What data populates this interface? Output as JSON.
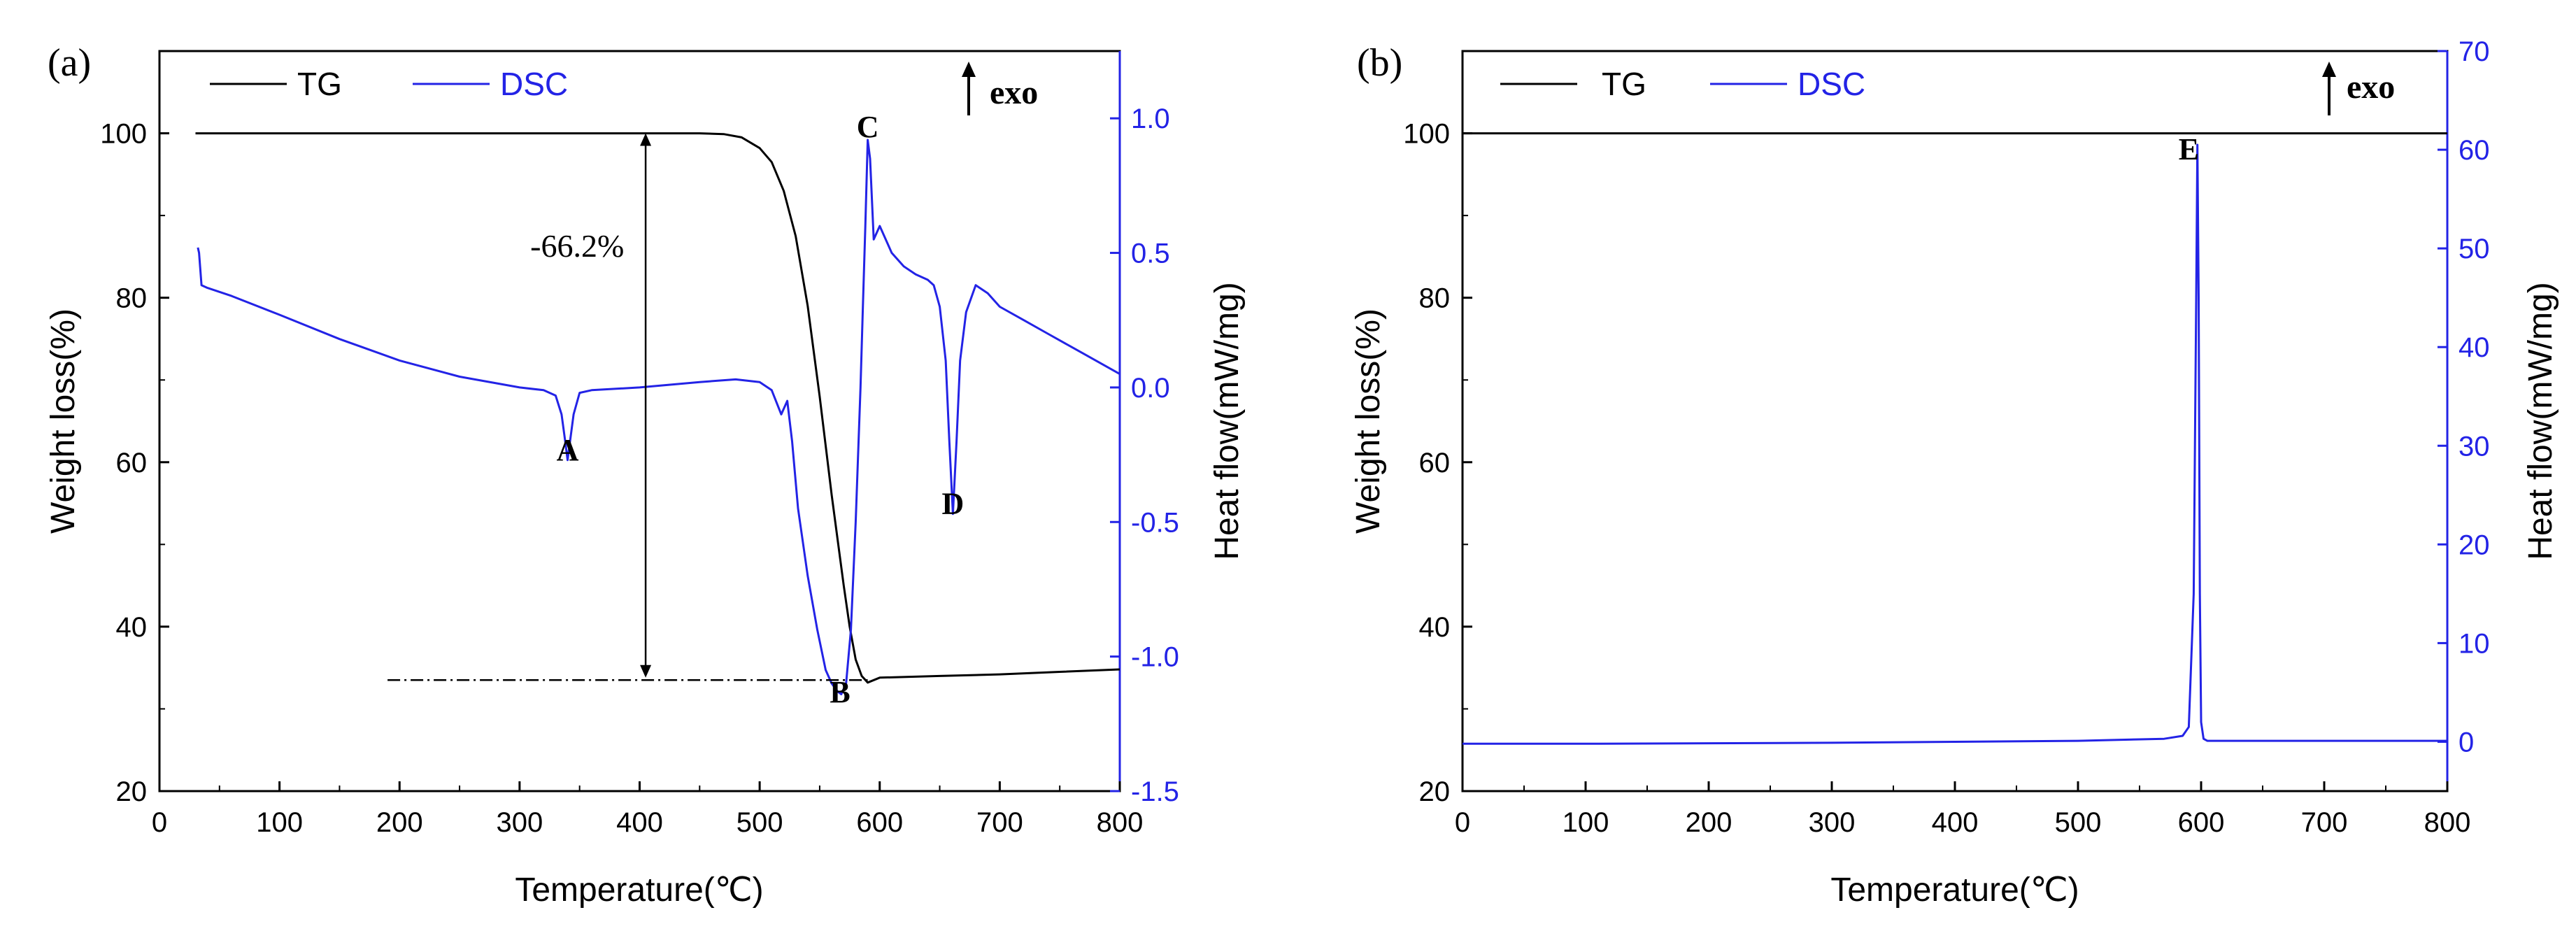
{
  "chart_data": [
    {
      "type": "line",
      "panel_label": "(a)",
      "xlabel": "Temperature(℃)",
      "ylabel": "Weight loss(%)",
      "y2label": "Heat flow(mW/mg)",
      "xlim": [
        0,
        800
      ],
      "ylim": [
        20,
        110
      ],
      "y2lim": [
        -1.5,
        1.25
      ],
      "x_ticks": [
        "0",
        "100",
        "200",
        "300",
        "400",
        "500",
        "600",
        "700",
        "800"
      ],
      "y_ticks": [
        "20",
        "40",
        "60",
        "80",
        "100"
      ],
      "y2_ticks": [
        "-1.5",
        "-1.0",
        "-0.5",
        "0.0",
        "0.5",
        "1.0"
      ],
      "exo_label": "exo",
      "legend": [
        {
          "name": "TG",
          "color": "#000000"
        },
        {
          "name": "DSC",
          "color": "#2323e6"
        }
      ],
      "annotations": [
        {
          "text": "A",
          "x": 340,
          "y2": -0.27
        },
        {
          "text": "B",
          "x": 567,
          "y2": -1.17
        },
        {
          "text": "C",
          "x": 590,
          "y2": 0.93
        },
        {
          "text": "D",
          "x": 661,
          "y2": -0.47
        },
        {
          "text": "-66.2%",
          "x": 348,
          "y": 85
        }
      ],
      "mass_loss_arrow": {
        "x": 405,
        "from": 100,
        "to": 33.8
      },
      "baseline_line": {
        "x_from": 190,
        "x_to": 590,
        "y": 33.5
      },
      "series": [
        {
          "name": "TG",
          "axis": "left",
          "color": "#000000",
          "x": [
            30,
            100,
            200,
            300,
            400,
            450,
            470,
            485,
            500,
            510,
            520,
            530,
            540,
            550,
            560,
            570,
            575,
            580,
            585,
            590,
            600,
            650,
            700,
            750,
            800
          ],
          "values": [
            100,
            100,
            100,
            100,
            100,
            100,
            99.9,
            99.5,
            98.2,
            96.5,
            93,
            87.5,
            79,
            68,
            56,
            45,
            40,
            36,
            34,
            33.2,
            33.8,
            34,
            34.2,
            34.5,
            34.8
          ]
        },
        {
          "name": "DSC",
          "axis": "right",
          "color": "#2323e6",
          "x": [
            32,
            33,
            35,
            40,
            60,
            100,
            150,
            200,
            250,
            300,
            320,
            330,
            335,
            338,
            340,
            342,
            345,
            350,
            360,
            400,
            450,
            480,
            500,
            510,
            518,
            523,
            527,
            532,
            540,
            548,
            555,
            560,
            565,
            568,
            572,
            576,
            580,
            584,
            586,
            588,
            590,
            592,
            595,
            600,
            610,
            620,
            630,
            640,
            645,
            650,
            655,
            658,
            661,
            664,
            667,
            672,
            680,
            690,
            700,
            720,
            740,
            760,
            780,
            800
          ],
          "values": [
            0.52,
            0.5,
            0.38,
            0.37,
            0.34,
            0.27,
            0.18,
            0.1,
            0.04,
            0.0,
            -0.01,
            -0.03,
            -0.1,
            -0.2,
            -0.27,
            -0.2,
            -0.1,
            -0.02,
            -0.01,
            0.0,
            0.02,
            0.03,
            0.02,
            -0.01,
            -0.1,
            -0.05,
            -0.2,
            -0.45,
            -0.7,
            -0.9,
            -1.05,
            -1.1,
            -1.13,
            -1.14,
            -1.1,
            -0.9,
            -0.5,
            0.0,
            0.3,
            0.6,
            0.92,
            0.85,
            0.55,
            0.6,
            0.5,
            0.45,
            0.42,
            0.4,
            0.38,
            0.3,
            0.1,
            -0.2,
            -0.47,
            -0.2,
            0.1,
            0.28,
            0.38,
            0.35,
            0.3,
            0.25,
            0.2,
            0.15,
            0.1,
            0.05
          ]
        }
      ]
    },
    {
      "type": "line",
      "panel_label": "(b)",
      "xlabel": "Temperature(℃)",
      "ylabel": "Weight loss(%)",
      "y2label": "Heat flow(mW/mg)",
      "xlim": [
        0,
        800
      ],
      "ylim": [
        20,
        110
      ],
      "y2lim": [
        -5,
        70
      ],
      "x_ticks": [
        "0",
        "100",
        "200",
        "300",
        "400",
        "500",
        "600",
        "700",
        "800"
      ],
      "y_ticks": [
        "20",
        "40",
        "60",
        "80",
        "100"
      ],
      "y2_ticks": [
        "0",
        "10",
        "20",
        "30",
        "40",
        "50",
        "60",
        "70"
      ],
      "exo_label": "exo",
      "legend": [
        {
          "name": "TG",
          "color": "#000000"
        },
        {
          "name": "DSC",
          "color": "#2323e6"
        }
      ],
      "annotations": [
        {
          "text": "E",
          "x": 590,
          "y2": 59
        }
      ],
      "series": [
        {
          "name": "TG",
          "axis": "left",
          "color": "#000000",
          "x": [
            0,
            800
          ],
          "values": [
            100,
            100
          ]
        },
        {
          "name": "DSC",
          "axis": "right",
          "color": "#2323e6",
          "x": [
            0,
            100,
            200,
            300,
            400,
            500,
            570,
            585,
            590,
            594,
            596,
            597,
            598,
            599,
            600,
            602,
            605,
            610,
            700,
            800
          ],
          "values": [
            -0.2,
            -0.2,
            -0.15,
            -0.1,
            0.0,
            0.1,
            0.3,
            0.6,
            1.5,
            15,
            45,
            60.5,
            45,
            15,
            2,
            0.3,
            0.1,
            0.1,
            0.1,
            0.1
          ]
        }
      ]
    }
  ]
}
